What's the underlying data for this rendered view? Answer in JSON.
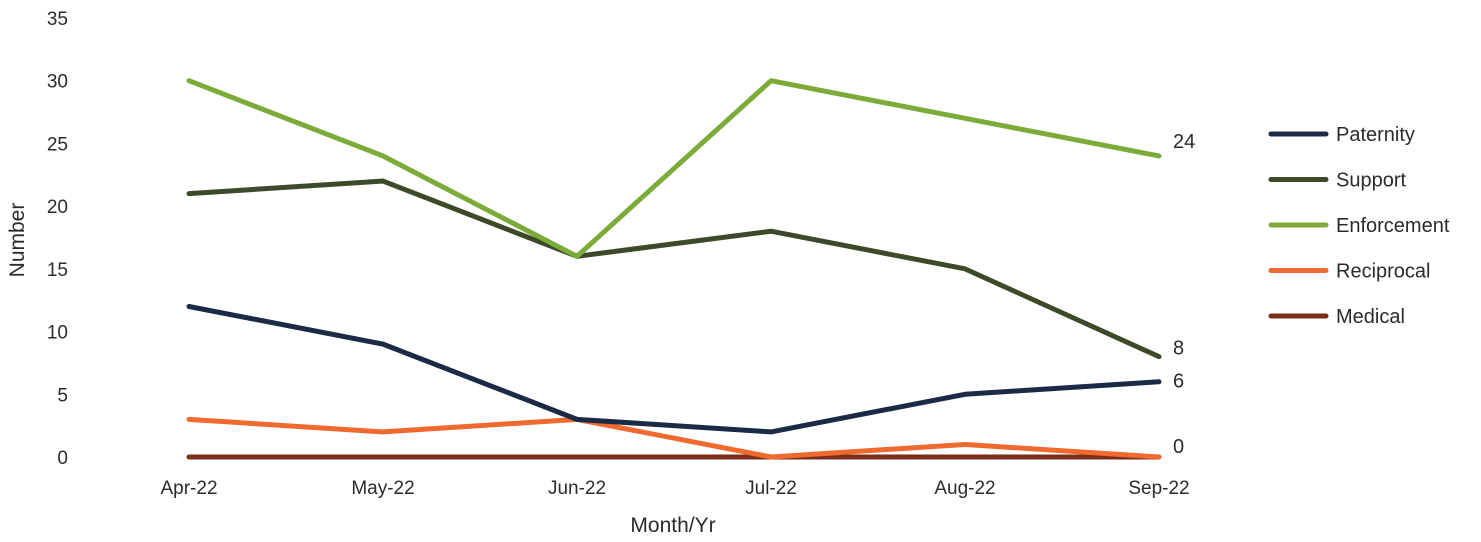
{
  "chart_data": {
    "type": "line",
    "xlabel": "Month/Yr",
    "ylabel": "Number",
    "ylim": [
      0,
      35
    ],
    "yticks": [
      "0",
      "5",
      "10",
      "15",
      "20",
      "25",
      "30",
      "35"
    ],
    "categories": [
      "Apr-22",
      "May-22",
      "Jun-22",
      "Jul-22",
      "Aug-22",
      "Sep-22"
    ],
    "grid": false,
    "legend_position": "right",
    "series": [
      {
        "name": "Paternity",
        "color": "#1b2a45",
        "values": [
          12,
          9,
          3,
          2,
          5,
          6
        ],
        "end_label": "6"
      },
      {
        "name": "Support",
        "color": "#3c4a2a",
        "values": [
          21,
          22,
          16,
          18,
          15,
          8
        ],
        "end_label": "8"
      },
      {
        "name": "Enforcement",
        "color": "#7cab3a",
        "values": [
          30,
          24,
          16,
          30,
          27,
          24
        ],
        "end_label": "24"
      },
      {
        "name": "Reciprocal",
        "color": "#f06a30",
        "values": [
          3,
          2,
          3,
          0,
          1,
          0
        ],
        "end_label": ""
      },
      {
        "name": "Medical",
        "color": "#7a2e1a",
        "values": [
          0,
          0,
          0,
          0,
          0,
          0
        ],
        "end_label": "0"
      }
    ]
  }
}
